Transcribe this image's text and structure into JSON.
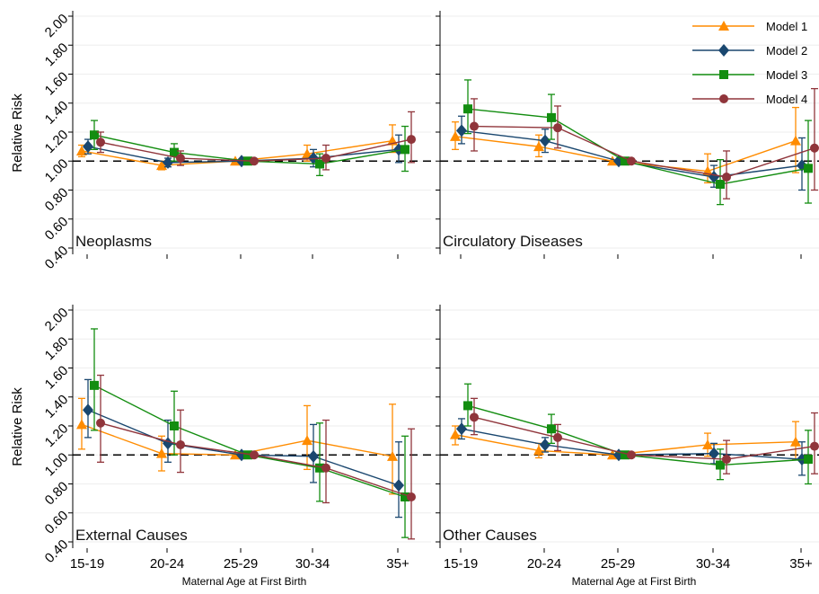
{
  "chart_data": {
    "type": "line",
    "layout": "2x2 panels",
    "categories": [
      "15-19",
      "20-24",
      "25-29",
      "30-34",
      "35+"
    ],
    "ylabel": "Relative Risk",
    "xlabel": "Maternal Age at First  Birth",
    "y_ticks": [
      "0.40",
      "0.60",
      "0.80",
      "1.00",
      "1.20",
      "1.40",
      "1.60",
      "1.80",
      "2.00"
    ],
    "ylim": [
      0.4,
      2.0
    ],
    "reference_line": 1.0,
    "grid": true,
    "legend_placement": "top-right of upper-right panel",
    "series_styles": [
      {
        "name": "Model 1",
        "color": "#ff8c00",
        "marker": "triangle"
      },
      {
        "name": "Model 2",
        "color": "#1a476f",
        "marker": "diamond"
      },
      {
        "name": "Model 3",
        "color": "#138d10",
        "marker": "square"
      },
      {
        "name": "Model 4",
        "color": "#90353b",
        "marker": "circle"
      }
    ],
    "panels": [
      {
        "title": "Neoplasms",
        "series": [
          {
            "name": "Model 1",
            "values": [
              1.07,
              0.97,
              1.0,
              1.05,
              1.14
            ],
            "ci": [
              [
                1.03,
                1.11
              ],
              [
                0.94,
                1.0
              ],
              [
                1.0,
                1.0
              ],
              [
                1.0,
                1.11
              ],
              [
                1.06,
                1.25
              ]
            ]
          },
          {
            "name": "Model 2",
            "values": [
              1.1,
              0.99,
              1.0,
              1.02,
              1.08
            ],
            "ci": [
              [
                1.05,
                1.15
              ],
              [
                0.96,
                1.02
              ],
              [
                1.0,
                1.0
              ],
              [
                0.96,
                1.08
              ],
              [
                0.99,
                1.18
              ]
            ]
          },
          {
            "name": "Model 3",
            "values": [
              1.18,
              1.06,
              1.0,
              0.98,
              1.08
            ],
            "ci": [
              [
                1.08,
                1.28
              ],
              [
                1.0,
                1.12
              ],
              [
                1.0,
                1.0
              ],
              [
                0.9,
                1.05
              ],
              [
                0.93,
                1.24
              ]
            ]
          },
          {
            "name": "Model 4",
            "values": [
              1.13,
              1.02,
              1.0,
              1.02,
              1.15
            ],
            "ci": [
              [
                1.06,
                1.2
              ],
              [
                0.97,
                1.07
              ],
              [
                1.0,
                1.0
              ],
              [
                0.94,
                1.11
              ],
              [
                0.99,
                1.34
              ]
            ]
          }
        ]
      },
      {
        "title": "Circulatory Diseases",
        "series": [
          {
            "name": "Model 1",
            "values": [
              1.17,
              1.1,
              1.0,
              0.93,
              1.14
            ],
            "ci": [
              [
                1.08,
                1.27
              ],
              [
                1.03,
                1.18
              ],
              [
                1.0,
                1.0
              ],
              [
                0.85,
                1.05
              ],
              [
                0.92,
                1.37
              ]
            ]
          },
          {
            "name": "Model 2",
            "values": [
              1.21,
              1.14,
              1.0,
              0.89,
              0.97
            ],
            "ci": [
              [
                1.12,
                1.31
              ],
              [
                1.06,
                1.22
              ],
              [
                1.0,
                1.0
              ],
              [
                0.82,
                0.97
              ],
              [
                0.8,
                1.16
              ]
            ]
          },
          {
            "name": "Model 3",
            "values": [
              1.36,
              1.3,
              1.0,
              0.84,
              0.95
            ],
            "ci": [
              [
                1.19,
                1.56
              ],
              [
                1.15,
                1.46
              ],
              [
                1.0,
                1.0
              ],
              [
                0.7,
                1.01
              ],
              [
                0.71,
                1.28
              ]
            ]
          },
          {
            "name": "Model 4",
            "values": [
              1.24,
              1.23,
              1.0,
              0.89,
              1.09
            ],
            "ci": [
              [
                1.07,
                1.43
              ],
              [
                1.09,
                1.38
              ],
              [
                1.0,
                1.0
              ],
              [
                0.74,
                1.07
              ],
              [
                0.8,
                1.5
              ]
            ]
          }
        ]
      },
      {
        "title": "External Causes",
        "series": [
          {
            "name": "Model 1",
            "values": [
              1.21,
              1.01,
              1.0,
              1.1,
              0.99
            ],
            "ci": [
              [
                1.04,
                1.39
              ],
              [
                0.89,
                1.13
              ],
              [
                1.0,
                1.0
              ],
              [
                0.9,
                1.34
              ],
              [
                0.73,
                1.35
              ]
            ]
          },
          {
            "name": "Model 2",
            "values": [
              1.31,
              1.08,
              1.0,
              0.99,
              0.79
            ],
            "ci": [
              [
                1.12,
                1.52
              ],
              [
                0.95,
                1.24
              ],
              [
                1.0,
                1.0
              ],
              [
                0.81,
                1.21
              ],
              [
                0.57,
                1.09
              ]
            ]
          },
          {
            "name": "Model 3",
            "values": [
              1.48,
              1.2,
              1.0,
              0.91,
              0.71
            ],
            "ci": [
              [
                1.17,
                1.87
              ],
              [
                1.0,
                1.44
              ],
              [
                1.0,
                1.0
              ],
              [
                0.68,
                1.22
              ],
              [
                0.43,
                1.13
              ]
            ]
          },
          {
            "name": "Model 4",
            "values": [
              1.22,
              1.07,
              1.0,
              0.91,
              0.71
            ],
            "ci": [
              [
                0.95,
                1.55
              ],
              [
                0.88,
                1.31
              ],
              [
                1.0,
                1.0
              ],
              [
                0.67,
                1.24
              ],
              [
                0.42,
                1.18
              ]
            ]
          }
        ]
      },
      {
        "title": "Other Causes",
        "series": [
          {
            "name": "Model 1",
            "values": [
              1.14,
              1.03,
              1.0,
              1.07,
              1.09
            ],
            "ci": [
              [
                1.07,
                1.2
              ],
              [
                0.98,
                1.08
              ],
              [
                1.0,
                1.0
              ],
              [
                0.99,
                1.15
              ],
              [
                0.97,
                1.23
              ]
            ]
          },
          {
            "name": "Model 2",
            "values": [
              1.18,
              1.07,
              1.0,
              1.01,
              0.97
            ],
            "ci": [
              [
                1.11,
                1.25
              ],
              [
                1.02,
                1.12
              ],
              [
                1.0,
                1.0
              ],
              [
                0.94,
                1.08
              ],
              [
                0.86,
                1.09
              ]
            ]
          },
          {
            "name": "Model 3",
            "values": [
              1.34,
              1.18,
              1.0,
              0.93,
              0.97
            ],
            "ci": [
              [
                1.2,
                1.49
              ],
              [
                1.08,
                1.28
              ],
              [
                1.0,
                1.0
              ],
              [
                0.83,
                1.04
              ],
              [
                0.8,
                1.17
              ]
            ]
          },
          {
            "name": "Model 4",
            "values": [
              1.26,
              1.12,
              1.0,
              0.97,
              1.06
            ],
            "ci": [
              [
                1.14,
                1.39
              ],
              [
                1.03,
                1.21
              ],
              [
                1.0,
                1.0
              ],
              [
                0.87,
                1.1
              ],
              [
                0.87,
                1.29
              ]
            ]
          }
        ]
      }
    ]
  }
}
